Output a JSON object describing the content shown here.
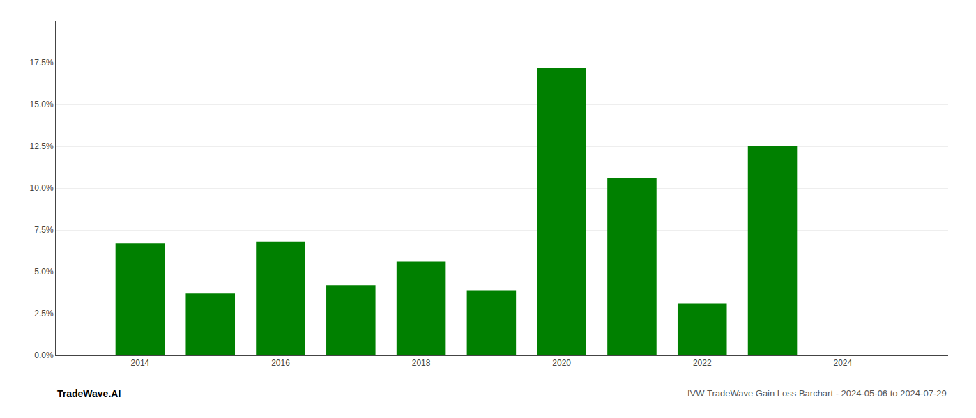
{
  "chart_data": {
    "type": "bar",
    "x": [
      2014,
      2015,
      2016,
      2017,
      2018,
      2019,
      2020,
      2021,
      2022,
      2023,
      2024
    ],
    "values": [
      0.067,
      0.037,
      0.068,
      0.042,
      0.056,
      0.039,
      0.172,
      0.106,
      0.031,
      0.125,
      0.0
    ],
    "color": "#008000",
    "xlim": [
      2012.8,
      2025.5
    ],
    "xticks": [
      2014,
      2016,
      2018,
      2020,
      2022,
      2024
    ],
    "ylim": [
      0,
      0.2
    ],
    "yticks": [
      {
        "value": 0.0,
        "label": "0.0%"
      },
      {
        "value": 0.025,
        "label": "2.5%"
      },
      {
        "value": 0.05,
        "label": "5.0%"
      },
      {
        "value": 0.075,
        "label": "7.5%"
      },
      {
        "value": 0.1,
        "label": "10.0%"
      },
      {
        "value": 0.125,
        "label": "12.5%"
      },
      {
        "value": 0.15,
        "label": "15.0%"
      },
      {
        "value": 0.175,
        "label": "17.5%"
      }
    ],
    "grid": true,
    "annotations": [
      "TradeWave.AI",
      "IVW TradeWave Gain Loss Barchart - 2024-05-06 to 2024-07-29"
    ]
  }
}
